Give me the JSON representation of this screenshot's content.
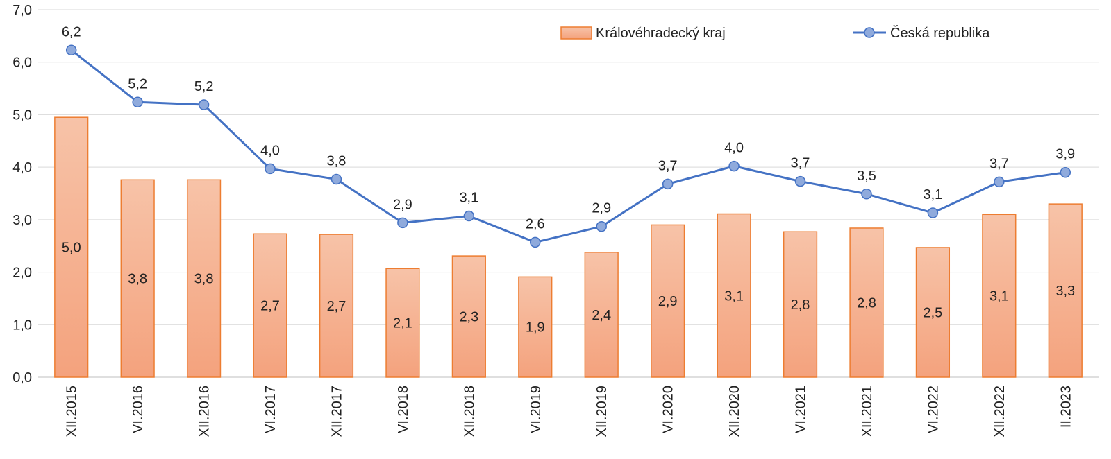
{
  "chart_data": {
    "type": "bar",
    "categories": [
      "XII.2015",
      "VI.2016",
      "XII.2016",
      "VI.2017",
      "XII.2017",
      "VI.2018",
      "XII.2018",
      "VI.2019",
      "XII.2019",
      "VI.2020",
      "XII.2020",
      "VI.2021",
      "XII.2021",
      "VI.2022",
      "XII.2022",
      "II.2023"
    ],
    "series": [
      {
        "name": "Královéhradecký kraj",
        "type": "bar",
        "values": [
          4.95,
          3.76,
          3.76,
          2.73,
          2.72,
          2.07,
          2.31,
          1.91,
          2.38,
          2.9,
          3.11,
          2.77,
          2.84,
          2.47,
          3.1,
          3.3
        ],
        "labels": [
          "5,0",
          "3,8",
          "3,8",
          "2,7",
          "2,7",
          "2,1",
          "2,3",
          "1,9",
          "2,4",
          "2,9",
          "3,1",
          "2,8",
          "2,8",
          "2,5",
          "3,1",
          "3,3"
        ],
        "color": "#f4a582",
        "border_color": "#ed7d31"
      },
      {
        "name": "Česká republika",
        "type": "line",
        "values": [
          6.23,
          5.24,
          5.19,
          3.97,
          3.77,
          2.94,
          3.07,
          2.57,
          2.87,
          3.68,
          4.02,
          3.73,
          3.49,
          3.13,
          3.72,
          3.9
        ],
        "labels": [
          "6,2",
          "5,2",
          "5,2",
          "4,0",
          "3,8",
          "2,9",
          "3,1",
          "2,6",
          "2,9",
          "3,7",
          "4,0",
          "3,7",
          "3,5",
          "3,1",
          "3,7",
          "3,9"
        ],
        "color": "#4472c4",
        "marker_color": "#8faadc"
      }
    ],
    "y_ticks": [
      "0,0",
      "1,0",
      "2,0",
      "3,0",
      "4,0",
      "5,0",
      "6,0",
      "7,0"
    ],
    "ylim": [
      0,
      7
    ],
    "grid": true,
    "legend_position": "top-right"
  }
}
